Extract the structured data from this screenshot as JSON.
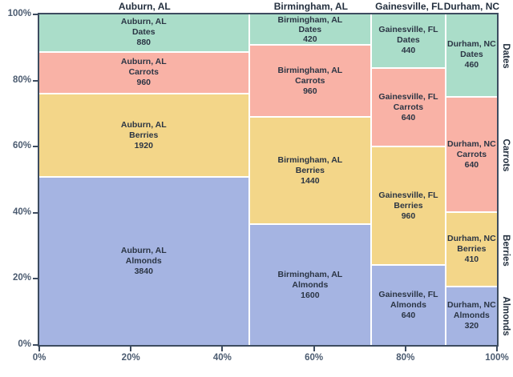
{
  "chart_data": {
    "type": "mosaic",
    "title": "",
    "xlabel": "",
    "ylabel": "",
    "x_axis_tick_labels": [
      "0%",
      "20%",
      "40%",
      "60%",
      "80%",
      "100%"
    ],
    "y_axis_tick_labels": [
      "0%",
      "20%",
      "40%",
      "60%",
      "80%",
      "100%"
    ],
    "x_tick_values": [
      0,
      20,
      40,
      60,
      80,
      100
    ],
    "y_tick_values": [
      0,
      20,
      40,
      60,
      80,
      100
    ],
    "column_headers": [
      "Auburn, AL",
      "Birmingham, AL",
      "Gainesville, FL",
      "Durham, NC"
    ],
    "row_order_top_to_bottom": [
      "Dates",
      "Carrots",
      "Berries",
      "Almonds"
    ],
    "right_row_labels": [
      "Dates",
      "Carrots",
      "Berries",
      "Almonds"
    ],
    "series": [
      {
        "city": "Auburn, AL",
        "values": {
          "Dates": 880,
          "Carrots": 960,
          "Berries": 1920,
          "Almonds": 3840
        }
      },
      {
        "city": "Birmingham, AL",
        "values": {
          "Dates": 420,
          "Carrots": 960,
          "Berries": 1440,
          "Almonds": 1600
        }
      },
      {
        "city": "Gainesville, FL",
        "values": {
          "Dates": 440,
          "Carrots": 640,
          "Berries": 960,
          "Almonds": 640
        }
      },
      {
        "city": "Durham, NC",
        "values": {
          "Dates": 460,
          "Carrots": 640,
          "Berries": 410,
          "Almonds": 320
        }
      }
    ],
    "colors": {
      "Dates": "#aaddc9",
      "Carrots": "#f9b2a6",
      "Berries": "#f3d689",
      "Almonds": "#a5b4e2"
    },
    "separator_color": "#ffffff",
    "axis_color": "#3d4c60",
    "cell_text_color": "#2b3544",
    "tick_text_color": "#4b5b70"
  }
}
